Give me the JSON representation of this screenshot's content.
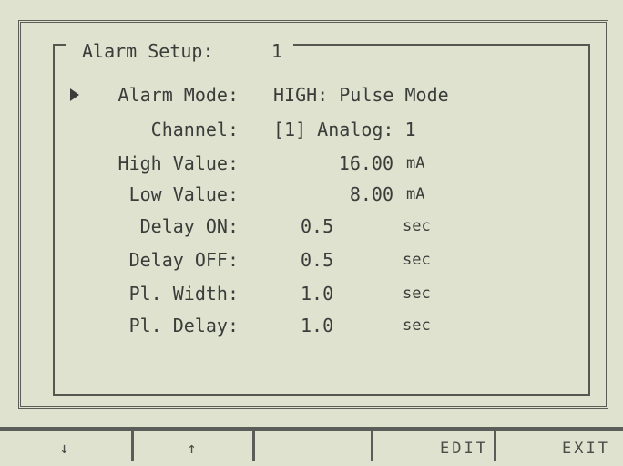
{
  "screen": {
    "title": "Alarm Setup:",
    "title_value": "1",
    "rows": [
      {
        "label": "Alarm Mode:",
        "value": "HIGH: Pulse Mode"
      },
      {
        "label": "Channel:",
        "value": "[1] Analog: 1"
      },
      {
        "label": "High Value:",
        "value": "16.00",
        "unit": "mA"
      },
      {
        "label": "Low Value:",
        "value": "8.00",
        "unit": "mA"
      },
      {
        "label": "Delay ON:",
        "value": "0.5",
        "unit": "sec"
      },
      {
        "label": "Delay OFF:",
        "value": "0.5",
        "unit": "sec"
      },
      {
        "label": "Pl. Width:",
        "value": "1.0",
        "unit": "sec"
      },
      {
        "label": "Pl. Delay:",
        "value": "1.0",
        "unit": "sec"
      }
    ],
    "softkeys": [
      "↓",
      "↑",
      "EDIT",
      "EXIT"
    ]
  }
}
